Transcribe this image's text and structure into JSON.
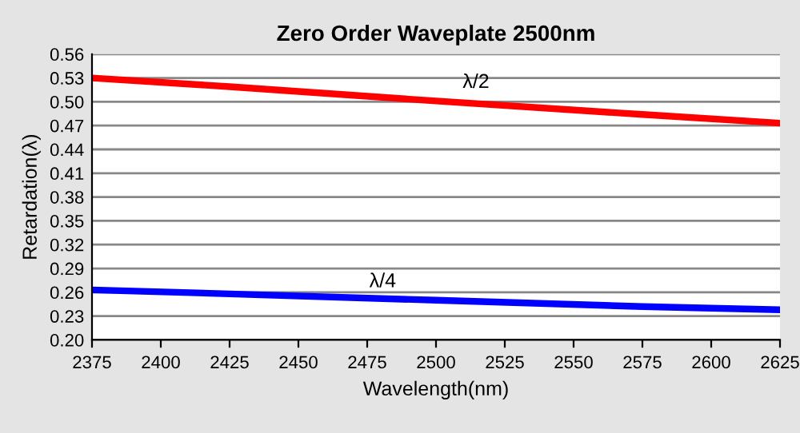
{
  "chart_data": {
    "type": "line",
    "title": "Zero Order Waveplate 2500nm",
    "xlabel": "Wavelength(nm)",
    "ylabel": "Retardation(λ)",
    "x": [
      2375,
      2425,
      2500,
      2575,
      2625
    ],
    "series": [
      {
        "name": "λ/2",
        "color": "#ff0000",
        "values": [
          0.53,
          0.519,
          0.501,
          0.484,
          0.473
        ]
      },
      {
        "name": "λ/4",
        "color": "#0000ff",
        "values": [
          0.263,
          0.258,
          0.25,
          0.242,
          0.238
        ]
      }
    ],
    "xlim": [
      2375,
      2625
    ],
    "xticks": [
      2375,
      2400,
      2425,
      2450,
      2475,
      2500,
      2525,
      2550,
      2575,
      2600,
      2625
    ],
    "ylim": [
      0.2,
      0.56
    ],
    "yticks": [
      {
        "value": 0.2,
        "label": "0.20"
      },
      0.23,
      0.26,
      0.29,
      0.32,
      0.35,
      0.38,
      0.41,
      0.44,
      0.47,
      {
        "value": 0.5,
        "label": "0.50"
      },
      0.53,
      0.56
    ],
    "grid": "y",
    "legend": false,
    "marker": "none",
    "line_style": "solid"
  }
}
